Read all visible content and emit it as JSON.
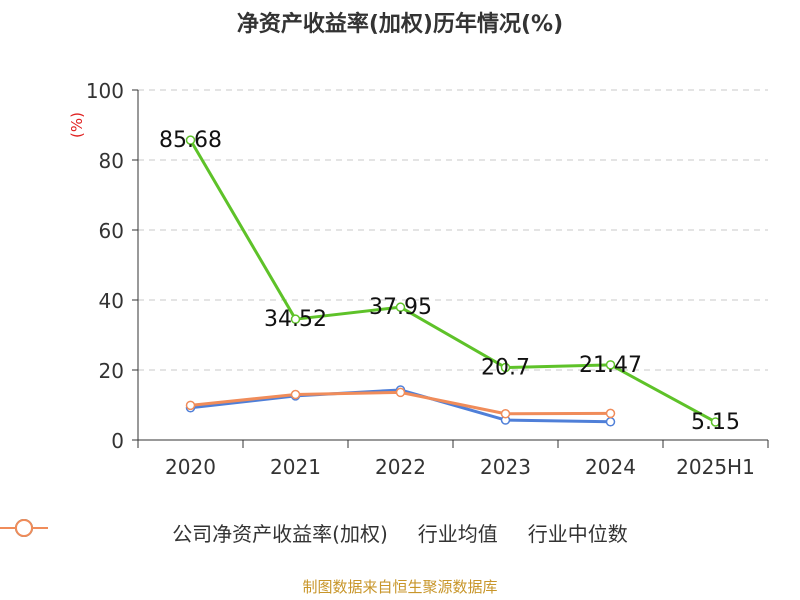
{
  "title": "净资产收益率(加权)历年情况(%)",
  "footer": "制图数据来自恒生聚源数据库",
  "chart_data": {
    "type": "line",
    "categories": [
      "2020",
      "2021",
      "2022",
      "2023",
      "2024",
      "2025H1"
    ],
    "ylabel": "(%)",
    "ylim": [
      0,
      100
    ],
    "yticks": [
      0,
      20,
      40,
      60,
      80,
      100
    ],
    "grid": true,
    "legend_position": "bottom",
    "series": [
      {
        "name": "公司净资产收益率(加权)",
        "color": "#5ec229",
        "values": [
          85.68,
          34.52,
          37.95,
          20.7,
          21.47,
          5.15
        ],
        "labels": [
          "85.68",
          "34.52",
          "37.95",
          "20.7",
          "21.47",
          "5.15"
        ]
      },
      {
        "name": "行业均值",
        "color": "#4f7fd8",
        "values": [
          9.2,
          12.6,
          14.3,
          5.7,
          5.2,
          null
        ]
      },
      {
        "name": "行业中位数",
        "color": "#f08c5a",
        "values": [
          9.9,
          13.0,
          13.6,
          7.5,
          7.6,
          null
        ]
      }
    ]
  }
}
